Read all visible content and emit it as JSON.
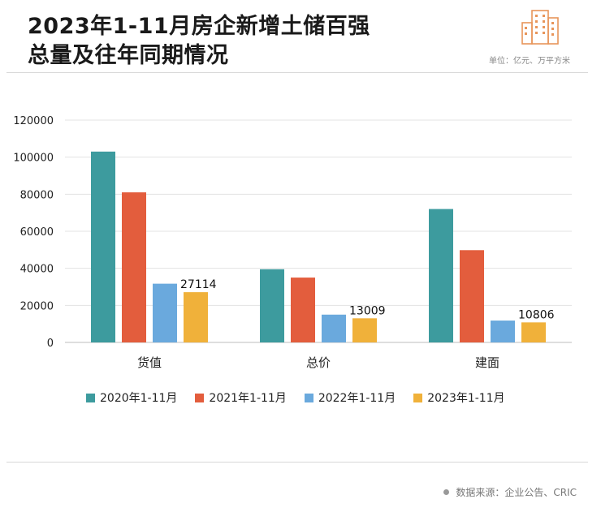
{
  "header": {
    "title_line1": "2023年1-11月房企新增土储百强",
    "title_line2": "总量及往年同期情况",
    "unit": "单位：亿元、万平方米"
  },
  "footer": {
    "source": "数据来源：企业公告、CRIC"
  },
  "colors": {
    "s2020": "#3d9b9e",
    "s2021": "#e35d3d",
    "s2022": "#6aa9dd",
    "s2023": "#f0b13a",
    "logo": "#e8955a"
  },
  "chart_data": {
    "type": "bar",
    "categories": [
      "货值",
      "总价",
      "建面"
    ],
    "series": [
      {
        "name": "2020年1-11月",
        "values": [
          103000,
          39500,
          72000
        ]
      },
      {
        "name": "2021年1-11月",
        "values": [
          81000,
          35000,
          49800
        ]
      },
      {
        "name": "2022年1-11月",
        "values": [
          31700,
          15000,
          11800
        ]
      },
      {
        "name": "2023年1-11月",
        "values": [
          27114,
          13009,
          10806
        ]
      }
    ],
    "data_labels": {
      "series_index": 3,
      "labels": [
        "27114",
        "13009",
        "10806"
      ]
    },
    "ylim": [
      0,
      120000
    ],
    "yticks": [
      "0",
      "20000",
      "40000",
      "60000",
      "80000",
      "100000",
      "120000"
    ],
    "grid": true,
    "legend_position": "bottom"
  }
}
